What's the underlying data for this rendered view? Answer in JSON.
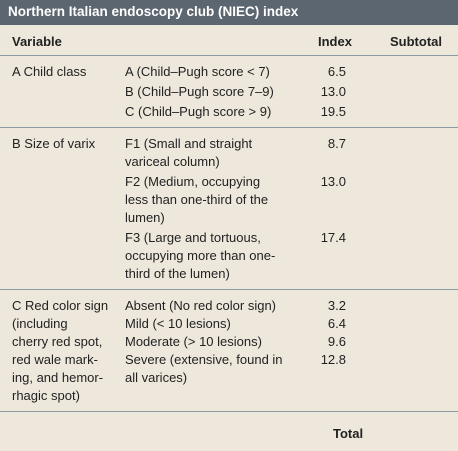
{
  "header": {
    "title": "Northern Italian endoscopy club (NIEC) index"
  },
  "table": {
    "columns": [
      "Variable",
      "Index",
      "Subtotal"
    ],
    "sections": [
      {
        "variable": [
          "A Child class"
        ],
        "items": [
          {
            "label": [
              "A (Child–Pugh score < 7)"
            ],
            "index": "6.5"
          },
          {
            "label": [
              "B (Child–Pugh score 7–9)"
            ],
            "index": "13.0"
          },
          {
            "label": [
              "C (Child–Pugh score > 9)"
            ],
            "index": "19.5"
          }
        ]
      },
      {
        "variable": [
          "B Size of varix"
        ],
        "items": [
          {
            "label": [
              "F1 (Small and straight",
              "variceal column)"
            ],
            "index": "8.7"
          },
          {
            "label": [
              "F2 (Medium, occupying",
              "less than one-third of the",
              "lumen)"
            ],
            "index": "13.0"
          },
          {
            "label": [
              "F3 (Large and tortuous,",
              "occupying more than one-",
              "third of the lumen)"
            ],
            "index": "17.4"
          }
        ]
      },
      {
        "variable": [
          "C Red color sign",
          "(including",
          "cherry red spot,",
          "red wale mark-",
          "ing, and hemor-",
          "rhagic spot)"
        ],
        "items": [
          {
            "label": [
              "Absent (No red color sign)"
            ],
            "index": "3.2"
          },
          {
            "label": [
              "Mild (< 10 lesions)"
            ],
            "index": "6.4"
          },
          {
            "label": [
              "Moderate (> 10 lesions)"
            ],
            "index": "9.6"
          },
          {
            "label": [
              "Severe (extensive, found in",
              "all varices)"
            ],
            "index": "12.8"
          }
        ]
      }
    ],
    "total": "Total"
  }
}
